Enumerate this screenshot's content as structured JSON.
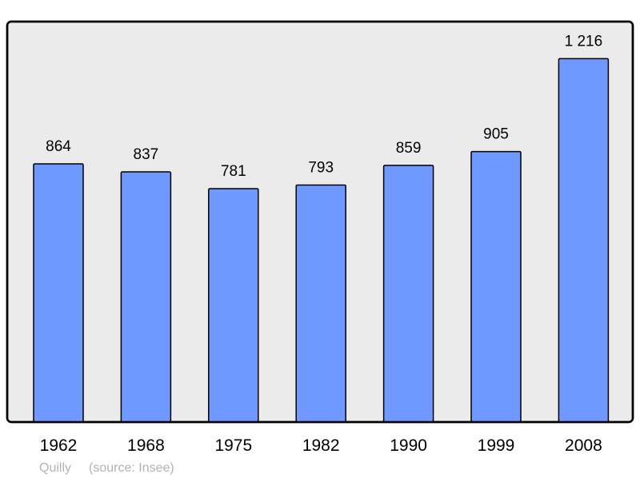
{
  "chart_data": {
    "type": "bar",
    "categories": [
      "1962",
      "1968",
      "1975",
      "1982",
      "1990",
      "1999",
      "2008"
    ],
    "values": [
      864,
      837,
      781,
      793,
      859,
      905,
      1216
    ],
    "value_labels": [
      "864",
      "837",
      "781",
      "793",
      "859",
      "905",
      "1 216"
    ],
    "title": "",
    "xlabel": "",
    "ylabel": "",
    "ylim": [
      0,
      1340
    ],
    "grid": false,
    "colors": {
      "bar": "#7099ff",
      "background": "#ebebeb",
      "outline": "#000000"
    }
  },
  "footer": {
    "place": "Quilly",
    "source": "(source: Insee)"
  }
}
